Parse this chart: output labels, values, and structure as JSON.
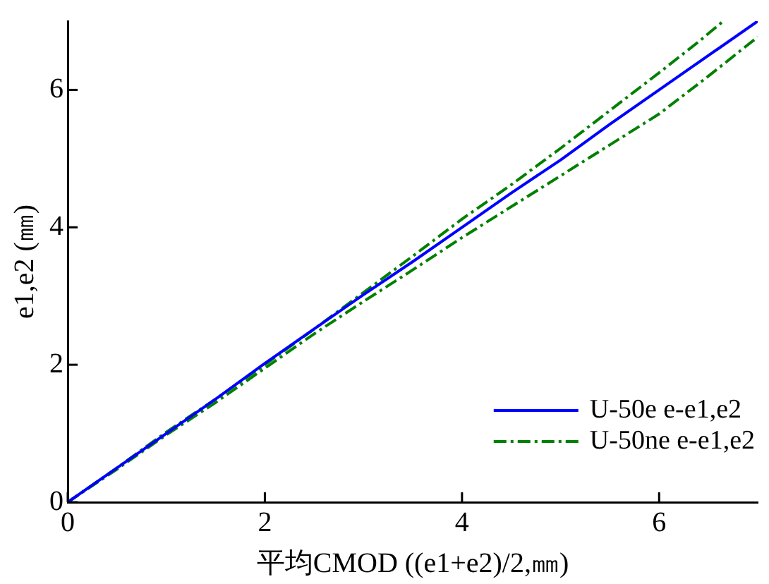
{
  "chart_data": {
    "type": "line",
    "xlabel": "平均CMOD ((e1+e2)/2,㎜)",
    "ylabel": "e1,e2 (㎜)",
    "xlim": [
      0,
      7
    ],
    "ylim": [
      0,
      7
    ],
    "xticks": [
      0,
      2,
      4,
      6
    ],
    "yticks": [
      0,
      2,
      4,
      6
    ],
    "grid": false,
    "legend": "bottom right",
    "marker": "none",
    "series": [
      {
        "name": "U-50e e-e1,e2",
        "color": "#0000ff",
        "line_style": "solid",
        "x": [
          0,
          0.5,
          1,
          1.5,
          2,
          2.5,
          3,
          3.5,
          4,
          4.5,
          5,
          5.5,
          6,
          6.5,
          7
        ],
        "values": [
          0,
          0.5,
          1,
          1.5,
          2.02,
          2.52,
          3.02,
          3.5,
          4,
          4.5,
          4.98,
          5.5,
          6,
          6.5,
          7
        ]
      },
      {
        "name": "U-50ne e-e1,e2",
        "color": "#008000",
        "line_style": "dashdot",
        "x": [
          0,
          0.5,
          1,
          1.5,
          2,
          2.5,
          3,
          3.5,
          4,
          4.5,
          5,
          5.5,
          6,
          6.4,
          6.65
        ],
        "values": [
          0,
          0.5,
          1.02,
          1.5,
          2,
          2.52,
          3.05,
          3.58,
          4.12,
          4.62,
          5.15,
          5.7,
          6.25,
          6.7,
          7
        ]
      },
      {
        "color": "#008000",
        "line_style": "dashdot",
        "x": [
          0,
          0.5,
          1,
          1.5,
          2,
          2.5,
          3,
          3.5,
          4,
          4.5,
          5,
          5.5,
          6,
          6.5,
          7
        ],
        "values": [
          0,
          0.48,
          0.98,
          1.45,
          1.95,
          2.45,
          2.92,
          3.38,
          3.85,
          4.3,
          4.75,
          5.2,
          5.65,
          6.2,
          6.77
        ]
      }
    ]
  }
}
